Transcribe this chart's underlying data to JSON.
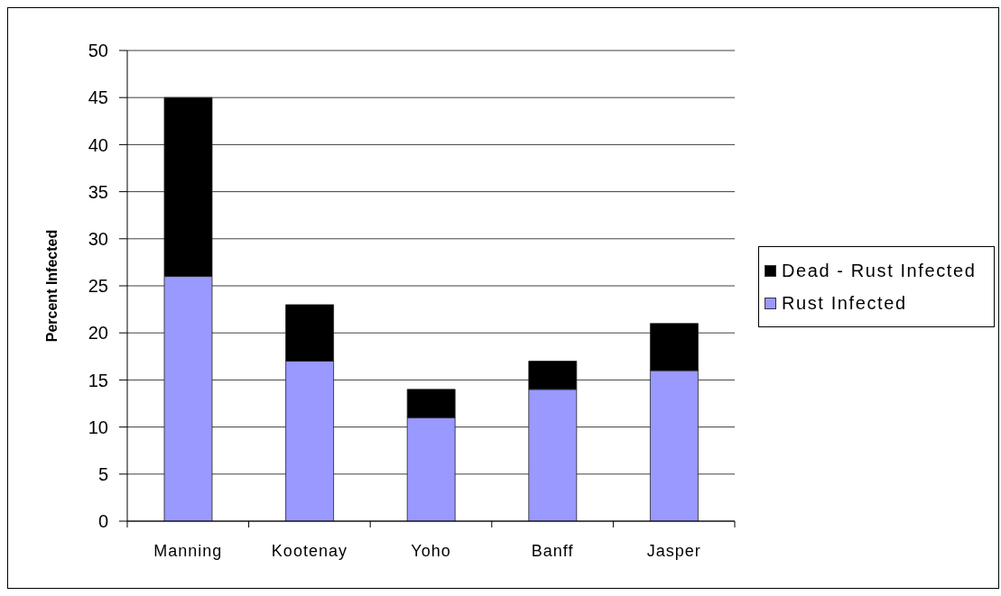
{
  "chart_data": {
    "type": "bar",
    "stacked": true,
    "categories": [
      "Manning",
      "Kootenay",
      "Yoho",
      "Banff",
      "Jasper"
    ],
    "series": [
      {
        "name": "Rust Infected",
        "color": "#9999ff",
        "values": [
          26,
          17,
          11,
          14,
          16
        ]
      },
      {
        "name": "Dead - Rust Infected",
        "color": "#000000",
        "values": [
          19,
          6,
          3,
          3,
          5
        ]
      }
    ],
    "ylabel": "Percent Infected",
    "ylim": [
      0,
      50
    ],
    "yticks": [
      0,
      5,
      10,
      15,
      20,
      25,
      30,
      35,
      40,
      45,
      50
    ],
    "grid": "y",
    "legend": "right"
  }
}
